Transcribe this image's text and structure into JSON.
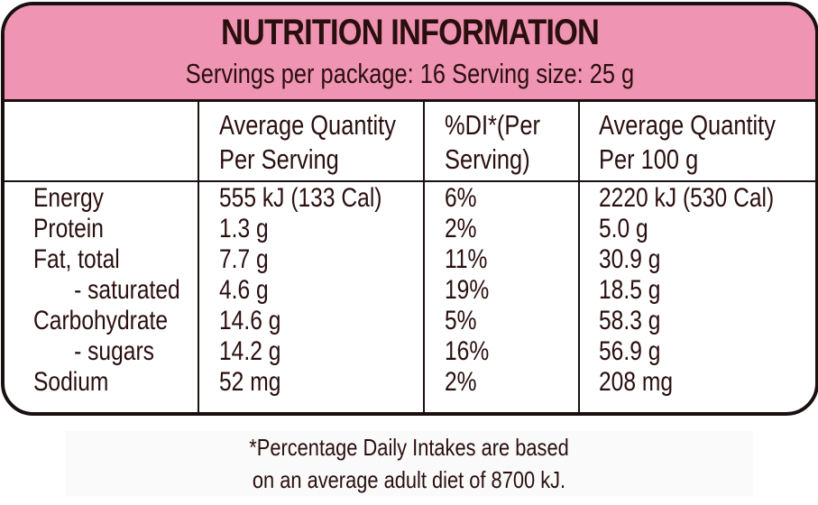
{
  "title": "NUTRITION INFORMATION",
  "subtitle": "Servings per package: 16  Serving size: 25 g",
  "columns": [
    {
      "line1": "Average Quantity",
      "line2": "Per Serving"
    },
    {
      "line1": "%DI*(Per",
      "line2": "Serving)"
    },
    {
      "line1": "Average Quantity",
      "line2": "Per 100 g"
    }
  ],
  "rows": [
    {
      "name": "Energy",
      "per_serving": "555 kJ (133 Cal)",
      "di": "6%",
      "per_100g": "2220 kJ (530 Cal)"
    },
    {
      "name": "Protein",
      "per_serving": "1.3 g",
      "di": "2%",
      "per_100g": "5.0 g"
    },
    {
      "name": "Fat, total",
      "per_serving": "7.7 g",
      "di": "11%",
      "per_100g": "30.9 g"
    },
    {
      "name": "- saturated",
      "per_serving": "4.6 g",
      "di": "19%",
      "per_100g": "18.5 g"
    },
    {
      "name": "Carbohydrate",
      "per_serving": "14.6 g",
      "di": "5%",
      "per_100g": "58.3 g"
    },
    {
      "name": "- sugars",
      "per_serving": "14.2 g",
      "di": "16%",
      "per_100g": "56.9 g"
    },
    {
      "name": "Sodium",
      "per_serving": "52 mg",
      "di": "2%",
      "per_100g": "208 mg"
    }
  ],
  "footnote": {
    "line1": "*Percentage Daily Intakes are based",
    "line2": "on an average adult diet of 8700 kJ."
  },
  "colors": {
    "header_bg": "#ef94b3",
    "border": "#1a1010",
    "text": "#2a0f0f"
  }
}
